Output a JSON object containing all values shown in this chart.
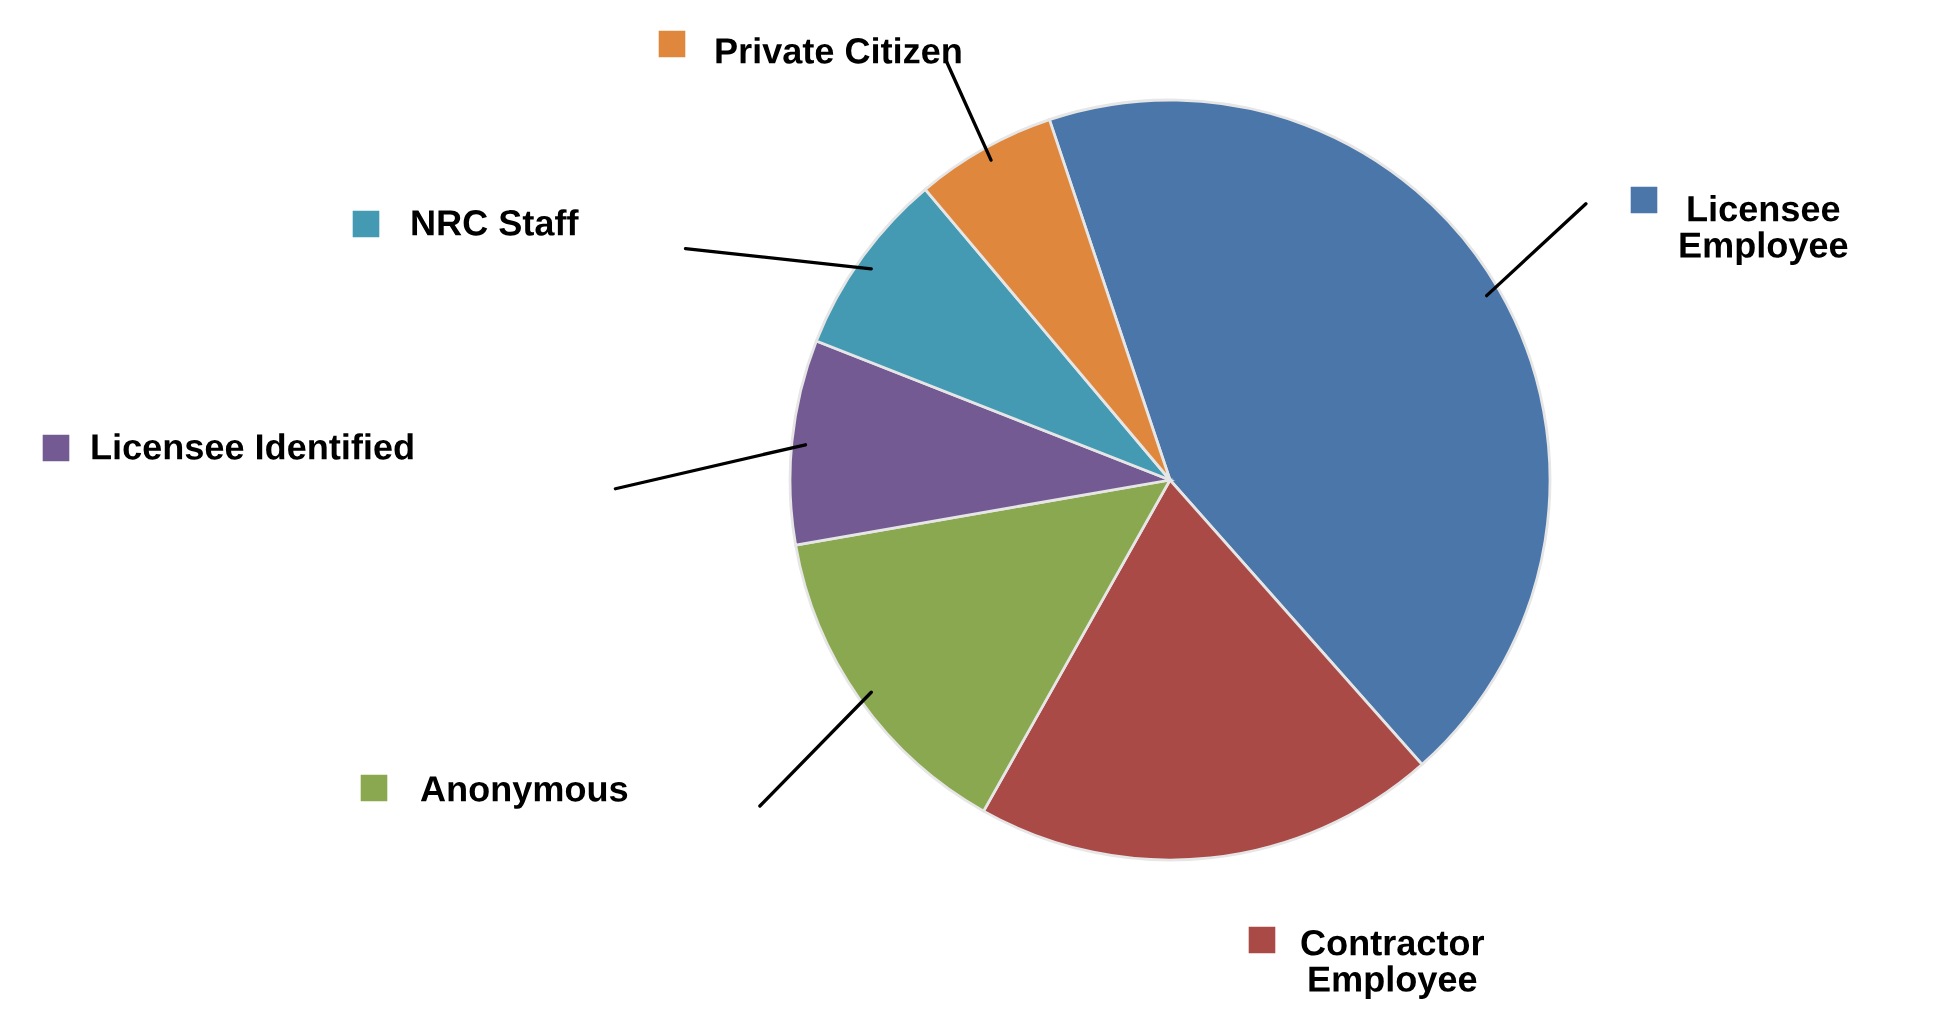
{
  "chart_data": {
    "type": "pie",
    "categories": [
      "Licensee\nEmployee",
      "Contractor\nEmployee",
      "Anonymous",
      "Licensee Identified",
      "NRC Staff",
      "Private Citizen"
    ],
    "values": [
      43.6,
      19.7,
      14.1,
      8.7,
      7.9,
      6.0
    ],
    "colors": [
      "#4a76aa",
      "#a94a47",
      "#8aa84f",
      "#745a93",
      "#4499b3",
      "#e0873e"
    ],
    "legend": "left"
  }
}
